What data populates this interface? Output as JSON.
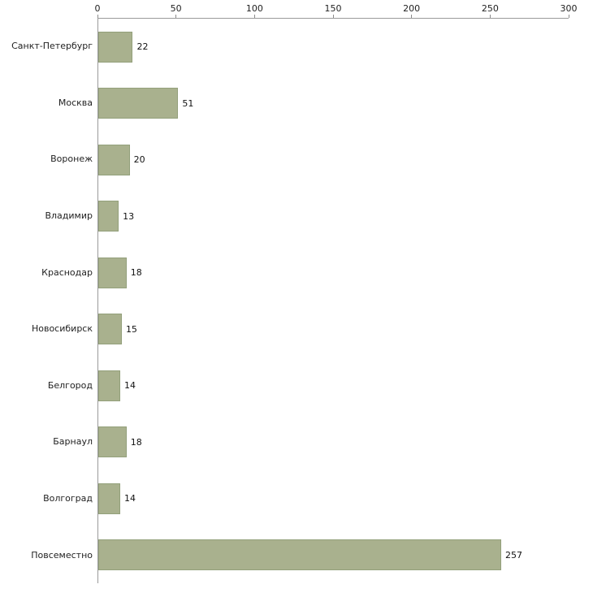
{
  "chart_data": {
    "type": "bar",
    "orientation": "horizontal",
    "title": "",
    "xlabel": "",
    "ylabel": "",
    "xlim": [
      0,
      300
    ],
    "x_ticks": [
      0,
      50,
      100,
      150,
      200,
      250,
      300
    ],
    "grid": false,
    "categories": [
      "Санкт-Петербург",
      "Москва",
      "Воронеж",
      "Владимир",
      "Краснодар",
      "Новосибирск",
      "Белгород",
      "Барнаул",
      "Волгоград",
      "Повсеместно"
    ],
    "values": [
      22,
      51,
      20,
      13,
      18,
      15,
      14,
      18,
      14,
      257
    ],
    "bar_color": "#a9b18e",
    "bar_border_color": "#93a07b",
    "axis_line_color": "#9a9a9a"
  }
}
